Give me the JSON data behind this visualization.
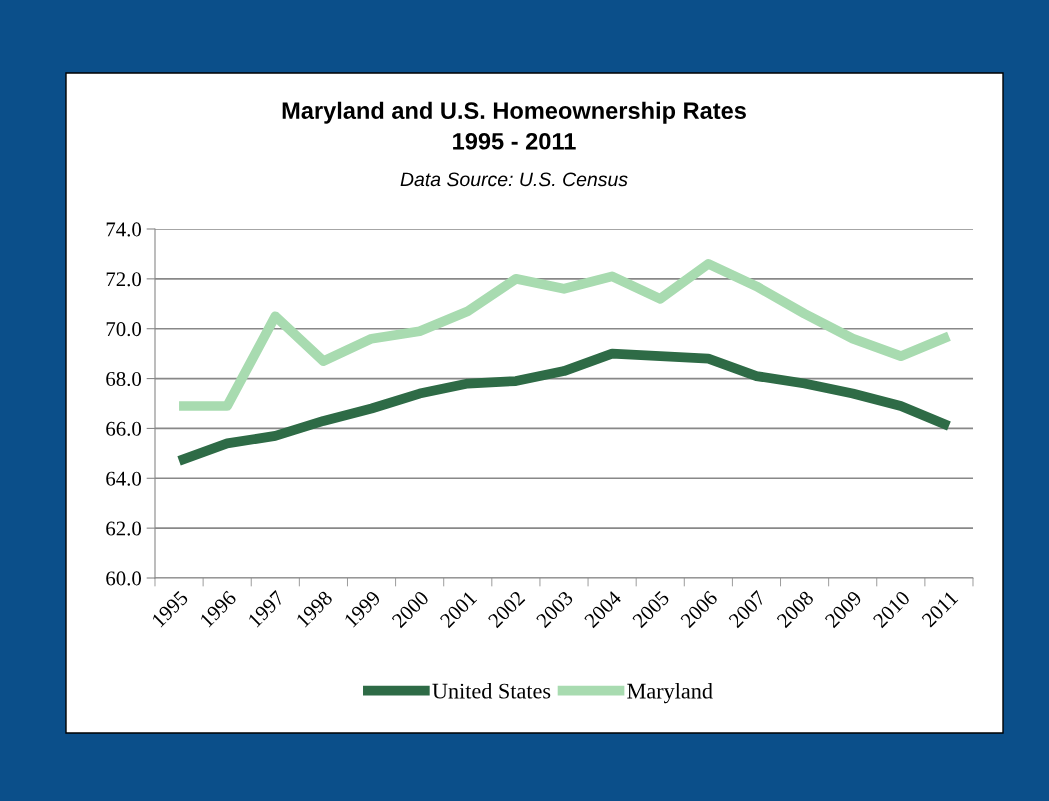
{
  "chart_data": {
    "type": "line",
    "title": "Maryland and U.S. Homeownership Rates\n1995 - 2011",
    "subtitle": "Data Source: U.S. Census",
    "categories": [
      "1995",
      "1996",
      "1997",
      "1998",
      "1999",
      "2000",
      "2001",
      "2002",
      "2003",
      "2004",
      "2005",
      "2006",
      "2007",
      "2008",
      "2009",
      "2010",
      "2011"
    ],
    "series": [
      {
        "name": "United States",
        "color": "#2e6b46",
        "values": [
          64.7,
          65.4,
          65.7,
          66.3,
          66.8,
          67.4,
          67.8,
          67.9,
          68.3,
          69.0,
          68.9,
          68.8,
          68.1,
          67.8,
          67.4,
          66.9,
          66.1
        ]
      },
      {
        "name": "Maryland",
        "color": "#a8dbb0",
        "values": [
          66.9,
          66.9,
          70.5,
          68.7,
          69.6,
          69.9,
          70.7,
          72.0,
          71.6,
          72.1,
          71.2,
          72.6,
          71.7,
          70.6,
          69.6,
          68.9,
          69.7
        ]
      }
    ],
    "ylim": [
      60,
      74
    ],
    "yticks": [
      {
        "value": 60,
        "label": "60.0"
      },
      {
        "value": 62,
        "label": "62.0"
      },
      {
        "value": 64,
        "label": "64.0"
      },
      {
        "value": 66,
        "label": "66.0"
      },
      {
        "value": 68,
        "label": "68.0"
      },
      {
        "value": 70,
        "label": "70.0"
      },
      {
        "value": 72,
        "label": "72.0"
      },
      {
        "value": 74,
        "label": "74.0"
      }
    ],
    "grid": "y",
    "legend": "bottom",
    "marker": "none",
    "line_style": "solid"
  }
}
